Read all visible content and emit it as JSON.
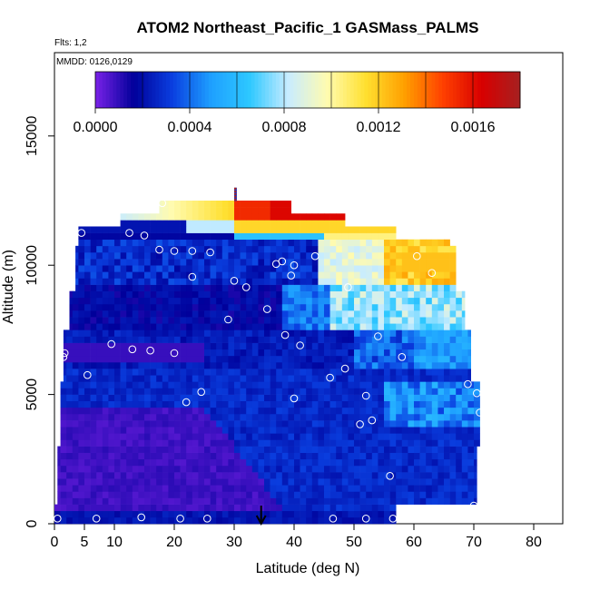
{
  "chart_data": {
    "type": "heatmap",
    "title": "ATOM2 Northeast_Pacific_1 GASMass_PALMS",
    "subtitle_flights": "Flts: 1,2",
    "subtitle_dates": "MMDD: 0126,0129",
    "xlabel": "Latitude (deg N)",
    "ylabel": "Altitude (m)",
    "xlim": [
      0,
      85
    ],
    "ylim": [
      0,
      17500
    ],
    "x_ticks": [
      0,
      5,
      10,
      20,
      30,
      40,
      50,
      60,
      70,
      80
    ],
    "y_ticks": [
      0,
      5000,
      10000,
      15000
    ],
    "colorbar": {
      "range": [
        0,
        0.0018
      ],
      "tick_values": [
        0,
        0.0004,
        0.0008,
        0.0012,
        0.0016
      ],
      "tick_labels": [
        "0.0000",
        "0.0004",
        "0.0008",
        "0.0012",
        "0.0016"
      ],
      "colors": [
        "#7a22e8",
        "#00009a",
        "#0a3fe0",
        "#1ea0ff",
        "#2ec8ff",
        "#c8ecff",
        "#fffbb0",
        "#ffe030",
        "#ffa000",
        "#ff4000",
        "#d80000",
        "#a62020"
      ]
    },
    "grid": false,
    "arrow_latitude": 34.5,
    "observations": [
      {
        "lat": 0.5,
        "alt": 200
      },
      {
        "lat": 7,
        "alt": 200
      },
      {
        "lat": 14.5,
        "alt": 250
      },
      {
        "lat": 21,
        "alt": 200
      },
      {
        "lat": 25.5,
        "alt": 200
      },
      {
        "lat": 46.5,
        "alt": 200
      },
      {
        "lat": 52,
        "alt": 200
      },
      {
        "lat": 56.5,
        "alt": 200
      },
      {
        "lat": 70,
        "alt": 700
      },
      {
        "lat": 56,
        "alt": 1850
      },
      {
        "lat": 51,
        "alt": 3850
      },
      {
        "lat": 53,
        "alt": 4000
      },
      {
        "lat": 71,
        "alt": 4300
      },
      {
        "lat": 22,
        "alt": 4700
      },
      {
        "lat": 24.5,
        "alt": 5100
      },
      {
        "lat": 40,
        "alt": 4850
      },
      {
        "lat": 52,
        "alt": 4950
      },
      {
        "lat": 70.5,
        "alt": 5050
      },
      {
        "lat": 69,
        "alt": 5400
      },
      {
        "lat": 46,
        "alt": 5650
      },
      {
        "lat": 48.5,
        "alt": 6000
      },
      {
        "lat": 5.5,
        "alt": 5750
      },
      {
        "lat": 1.5,
        "alt": 6450
      },
      {
        "lat": 1.7,
        "alt": 6600
      },
      {
        "lat": 9.5,
        "alt": 6950
      },
      {
        "lat": 13,
        "alt": 6750
      },
      {
        "lat": 16,
        "alt": 6700
      },
      {
        "lat": 20,
        "alt": 6600
      },
      {
        "lat": 41,
        "alt": 6900
      },
      {
        "lat": 58,
        "alt": 6450
      },
      {
        "lat": 38.5,
        "alt": 7300
      },
      {
        "lat": 54,
        "alt": 7250
      },
      {
        "lat": 29,
        "alt": 7900
      },
      {
        "lat": 35.5,
        "alt": 8300
      },
      {
        "lat": 23,
        "alt": 9550
      },
      {
        "lat": 30,
        "alt": 9400
      },
      {
        "lat": 32,
        "alt": 9150
      },
      {
        "lat": 39.5,
        "alt": 9600
      },
      {
        "lat": 49,
        "alt": 9150
      },
      {
        "lat": 37,
        "alt": 10050
      },
      {
        "lat": 38,
        "alt": 10150
      },
      {
        "lat": 40,
        "alt": 10000
      },
      {
        "lat": 43.5,
        "alt": 10350
      },
      {
        "lat": 60.5,
        "alt": 10350
      },
      {
        "lat": 63,
        "alt": 9700
      },
      {
        "lat": 17.5,
        "alt": 10600
      },
      {
        "lat": 20,
        "alt": 10550
      },
      {
        "lat": 23,
        "alt": 10550
      },
      {
        "lat": 26,
        "alt": 10500
      },
      {
        "lat": 4.5,
        "alt": 11250
      },
      {
        "lat": 12.5,
        "alt": 11250
      },
      {
        "lat": 15,
        "alt": 11150
      },
      {
        "lat": 18,
        "alt": 12400
      }
    ]
  }
}
